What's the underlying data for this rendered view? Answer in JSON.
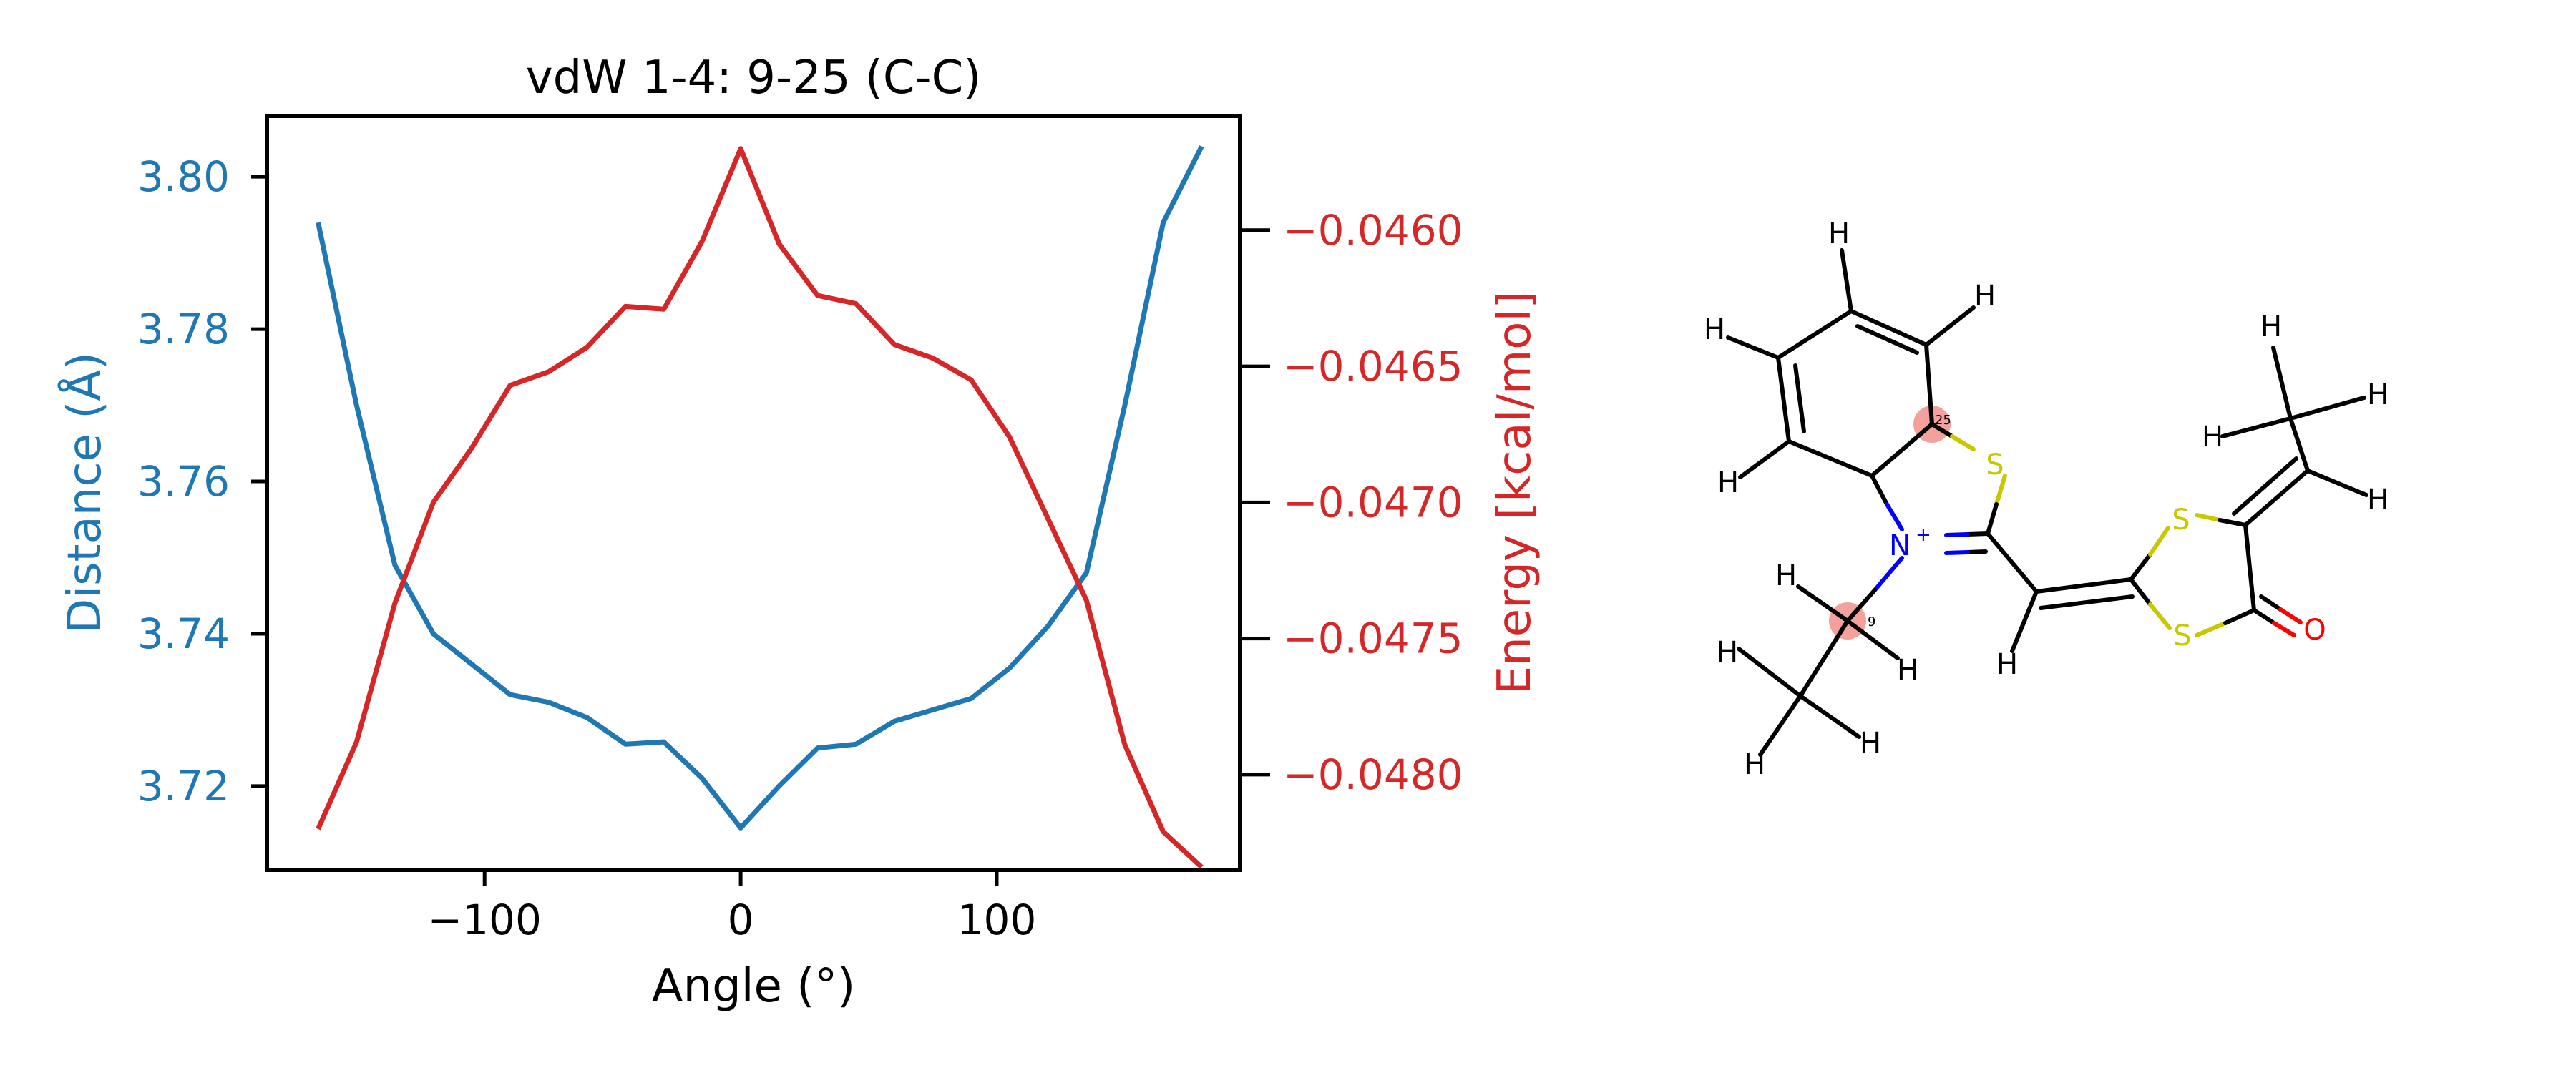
{
  "chart_data": {
    "type": "line",
    "title": "vdW 1-4: 9-25 (C-C)",
    "xlabel": "Angle (°)",
    "ylabel_left": "Distance (Å)",
    "ylabel_right": "Energy [kcal/mol]",
    "xlim": [
      -185,
      195
    ],
    "ylim_left": [
      3.709,
      3.808
    ],
    "ylim_right": [
      -0.04835,
      -0.04558
    ],
    "xticks": [
      -100,
      0,
      100
    ],
    "xtick_labels": [
      "−100",
      "0",
      "100"
    ],
    "yticks_left": [
      3.72,
      3.74,
      3.76,
      3.78,
      3.8
    ],
    "ytick_labels_left": [
      "3.72",
      "3.74",
      "3.76",
      "3.78",
      "3.80"
    ],
    "yticks_right": [
      -0.048,
      -0.0475,
      -0.047,
      -0.0465,
      -0.046
    ],
    "ytick_labels_right": [
      "−0.0480",
      "−0.0475",
      "−0.0470",
      "−0.0465",
      "−0.0460"
    ],
    "grid": false,
    "legend": "none",
    "x": [
      -165,
      -150,
      -135,
      -120,
      -105,
      -90,
      -75,
      -60,
      -45,
      -30,
      -15,
      0,
      15,
      30,
      45,
      60,
      75,
      90,
      105,
      120,
      135,
      150,
      165,
      180
    ],
    "series": [
      {
        "axis": "left",
        "color": "#1f77b4",
        "values": [
          3.794,
          3.77,
          3.749,
          3.74,
          3.736,
          3.732,
          3.731,
          3.729,
          3.7255,
          3.7258,
          3.721,
          3.7145,
          3.72,
          3.725,
          3.7255,
          3.7285,
          3.73,
          3.7315,
          3.7355,
          3.741,
          3.748,
          3.77,
          3.794,
          3.804
        ]
      },
      {
        "axis": "right",
        "color": "#d62728",
        "values": [
          -0.0482,
          -0.04788,
          -0.04737,
          -0.047,
          -0.0468,
          -0.04657,
          -0.04652,
          -0.04643,
          -0.04628,
          -0.04629,
          -0.04604,
          -0.0457,
          -0.04605,
          -0.04624,
          -0.04627,
          -0.04642,
          -0.04647,
          -0.04655,
          -0.04676,
          -0.04706,
          -0.04736,
          -0.04789,
          -0.04821,
          -0.04834
        ]
      }
    ]
  },
  "molecule": {
    "atom_labels": {
      "N": "N",
      "N_charge": "+",
      "S": "S",
      "O": "O",
      "H": "H",
      "highlight_9": "9",
      "highlight_25": "25"
    },
    "colors": {
      "carbon_bond": "#000000",
      "nitrogen": "#0000ff",
      "sulfur": "#c8c800",
      "oxygen": "#ff0000",
      "highlight": "#f4a09c"
    }
  }
}
